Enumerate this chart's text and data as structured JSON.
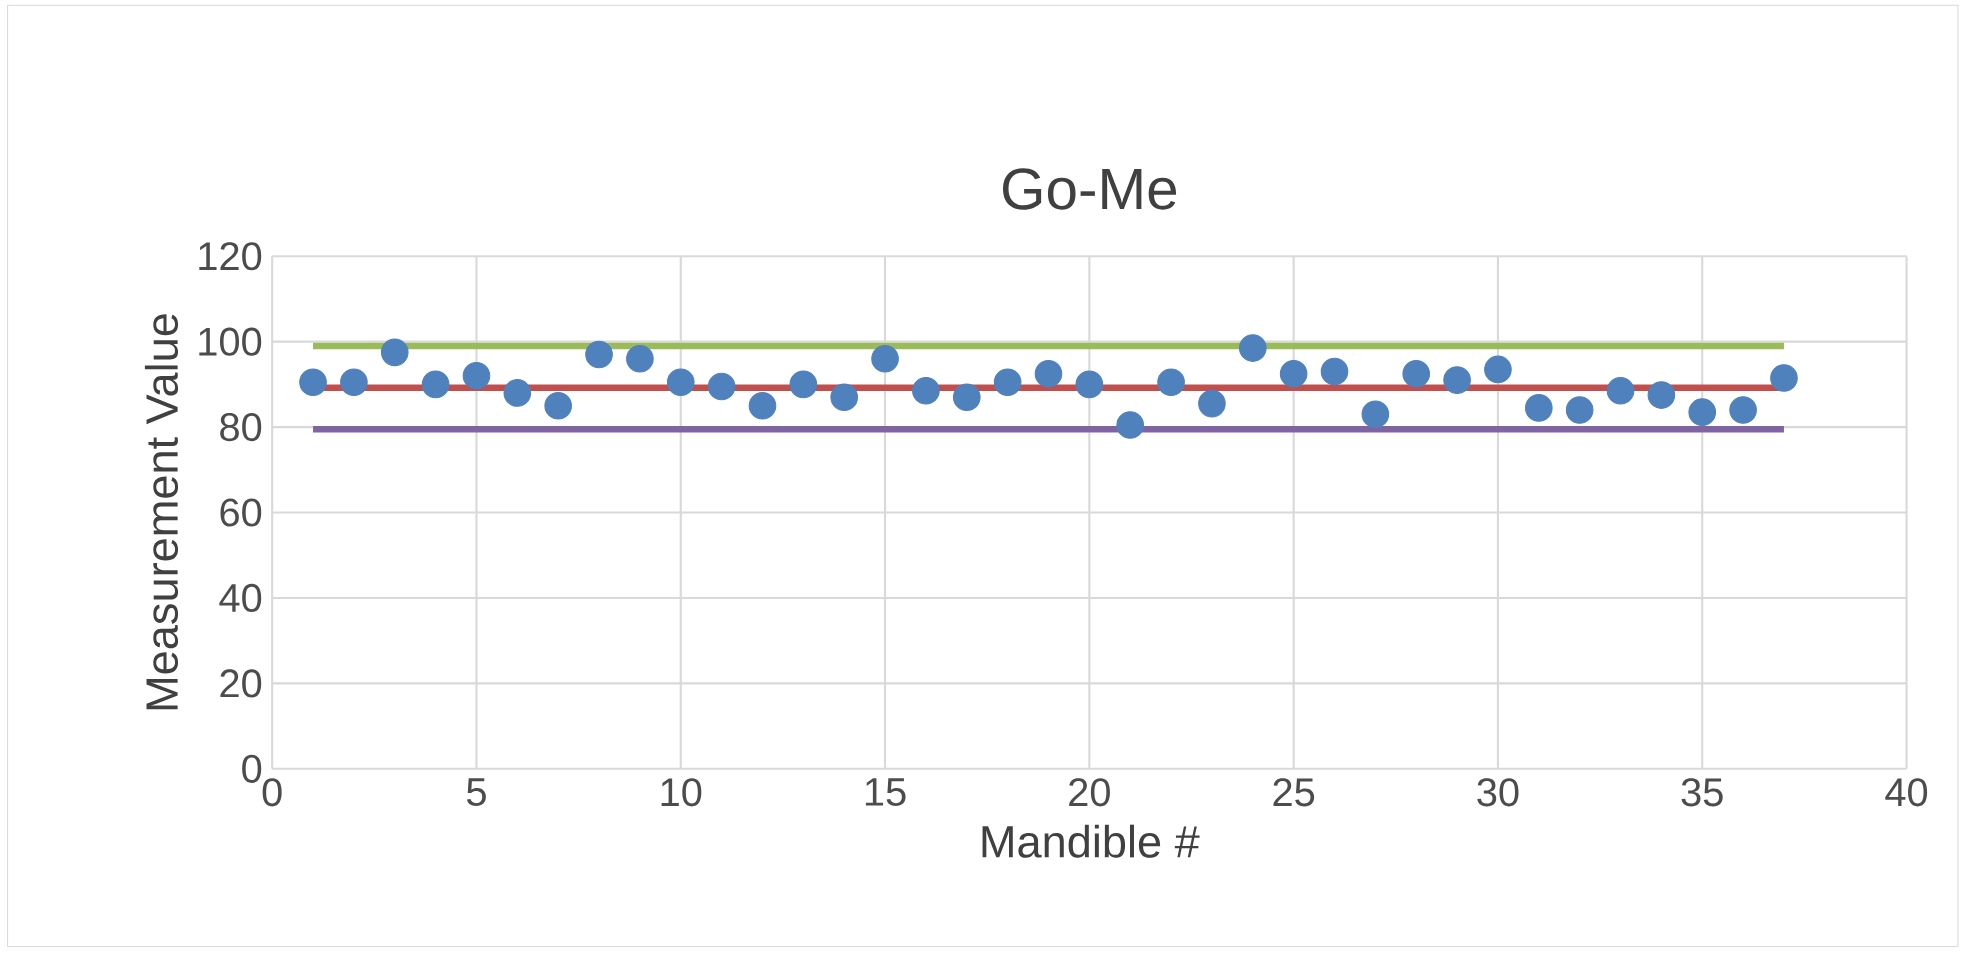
{
  "chart_data": {
    "type": "scatter",
    "title": "Go-Me",
    "xlabel": "Mandible #",
    "ylabel": "Measurement Value",
    "xlim": [
      0,
      40
    ],
    "xticks": [
      0,
      5,
      10,
      15,
      20,
      25,
      30,
      35,
      40
    ],
    "ylim": [
      0,
      120
    ],
    "yticks": [
      0,
      20,
      40,
      60,
      80,
      100,
      120
    ],
    "grid": true,
    "marker": "circle",
    "series": [
      {
        "color": "#4f81bd",
        "x": [
          1,
          2,
          3,
          4,
          5,
          6,
          7,
          8,
          9,
          10,
          11,
          12,
          13,
          14,
          15,
          16,
          17,
          18,
          19,
          20,
          21,
          22,
          23,
          24,
          25,
          26,
          27,
          28,
          29,
          30,
          31,
          32,
          33,
          34,
          35,
          36,
          37
        ],
        "values": [
          90.5,
          90.5,
          97.5,
          90,
          92,
          88,
          85,
          97,
          96,
          90.5,
          89.5,
          85,
          90,
          87,
          96,
          88.5,
          87,
          90.5,
          92.5,
          90,
          80.5,
          90.5,
          85.5,
          98.5,
          92.5,
          93,
          83,
          92.5,
          91,
          93.5,
          84.5,
          84,
          88.5,
          87.5,
          83.5,
          84,
          91.5
        ]
      },
      {
        "type": "line",
        "marker": "none",
        "color": "#9bbb59",
        "x": [
          1,
          37
        ],
        "values": [
          99,
          99
        ]
      },
      {
        "type": "line",
        "marker": "none",
        "color": "#c0504d",
        "x": [
          1,
          37
        ],
        "values": [
          89.2,
          89.2
        ]
      },
      {
        "type": "line",
        "marker": "none",
        "color": "#8064a2",
        "x": [
          1,
          37
        ],
        "values": [
          79.5,
          79.5
        ]
      }
    ]
  }
}
